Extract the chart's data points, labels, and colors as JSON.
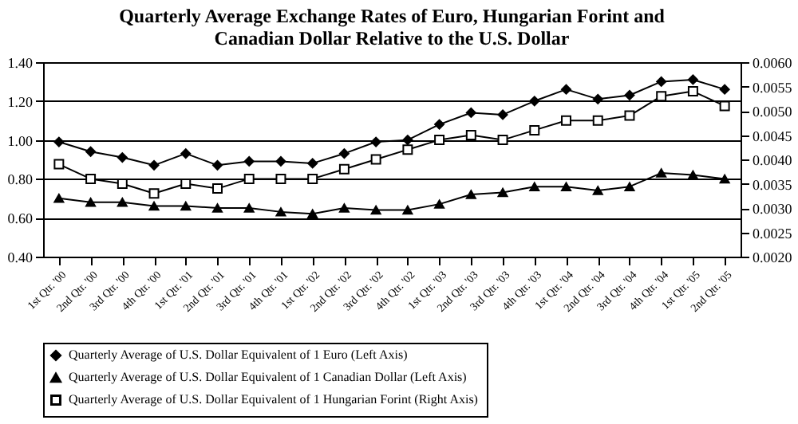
{
  "chart_data": {
    "type": "line",
    "title": [
      "Quarterly Average Exchange Rates of Euro, Hungarian Forint and",
      "Canadian Dollar Relative to the U.S. Dollar"
    ],
    "categories": [
      "1st Qtr. '00",
      "2nd Qtr. '00",
      "3rd Qtr. '00",
      "4th Qtr. '00",
      "1st Qtr. '01",
      "2nd Qtr. '01",
      "3rd Qtr. '01",
      "4th Qtr. '01",
      "1st Qtr. '02",
      "2nd Qtr. '02",
      "3rd Qtr. '02",
      "4th Qtr. '02",
      "1st Qtr. '03",
      "2nd Qtr. '03",
      "3rd Qtr. '03",
      "4th Qtr. '03",
      "1st Qtr. '04",
      "2nd Qtr. '04",
      "3rd Qtr. '04",
      "4th Qtr. '04",
      "1st Qtr. '05",
      "2nd Qtr. '05"
    ],
    "series": [
      {
        "name": "Quarterly Average of U.S. Dollar Equivalent of 1 Euro (Left Axis)",
        "color": "#000000",
        "marker": "diamond",
        "values": [
          0.99,
          0.94,
          0.91,
          0.87,
          0.93,
          0.87,
          0.89,
          0.89,
          0.88,
          0.93,
          0.99,
          1.0,
          1.08,
          1.14,
          1.13,
          1.2,
          1.26,
          1.21,
          1.23,
          1.3,
          1.31,
          1.26
        ]
      },
      {
        "name": "Quarterly Average of U.S. Dollar Equivalent of 1 Canadian Dollar (Left Axis)",
        "color": "#000000",
        "marker": "triangle",
        "values": [
          0.7,
          0.68,
          0.68,
          0.66,
          0.66,
          0.65,
          0.65,
          0.63,
          0.62,
          0.65,
          0.64,
          0.64,
          0.67,
          0.72,
          0.73,
          0.76,
          0.76,
          0.74,
          0.76,
          0.83,
          0.82,
          0.8
        ]
      },
      {
        "name": "Quarterly Average of U.S. Dollar Equivalent of 1 Hungarian Forint (Right Axis)",
        "color": "#000000",
        "marker": "square",
        "axis": "y2",
        "values": [
          0.0039,
          0.0036,
          0.0035,
          0.0033,
          0.0035,
          0.0034,
          0.0036,
          0.0036,
          0.0036,
          0.0038,
          0.004,
          0.0042,
          0.0044,
          0.0045,
          0.0044,
          0.0046,
          0.0048,
          0.0048,
          0.0049,
          0.0053,
          0.0054,
          0.0051
        ]
      }
    ],
    "ylim": [
      0.4,
      1.4
    ],
    "yticks": [
      {
        "value": 0.4,
        "label": "0.40"
      },
      {
        "value": 0.6,
        "label": "0.60"
      },
      {
        "value": 0.8,
        "label": "0.80"
      },
      {
        "value": 1.0,
        "label": "1.00"
      },
      {
        "value": 1.2,
        "label": "1.20"
      },
      {
        "value": 1.4,
        "label": "1.40"
      }
    ],
    "y2lim": [
      0.002,
      0.006
    ],
    "y2ticks": [
      {
        "value": 0.002,
        "label": "0.0020"
      },
      {
        "value": 0.0025,
        "label": "0.0025"
      },
      {
        "value": 0.003,
        "label": "0.0030"
      },
      {
        "value": 0.0035,
        "label": "0.0035"
      },
      {
        "value": 0.004,
        "label": "0.0040"
      },
      {
        "value": 0.0045,
        "label": "0.0045"
      },
      {
        "value": 0.005,
        "label": "0.0050"
      },
      {
        "value": 0.0055,
        "label": "0.0055"
      },
      {
        "value": 0.006,
        "label": "0.0060"
      }
    ],
    "grid": "y",
    "legend": "bottom",
    "line_style": "solid"
  }
}
